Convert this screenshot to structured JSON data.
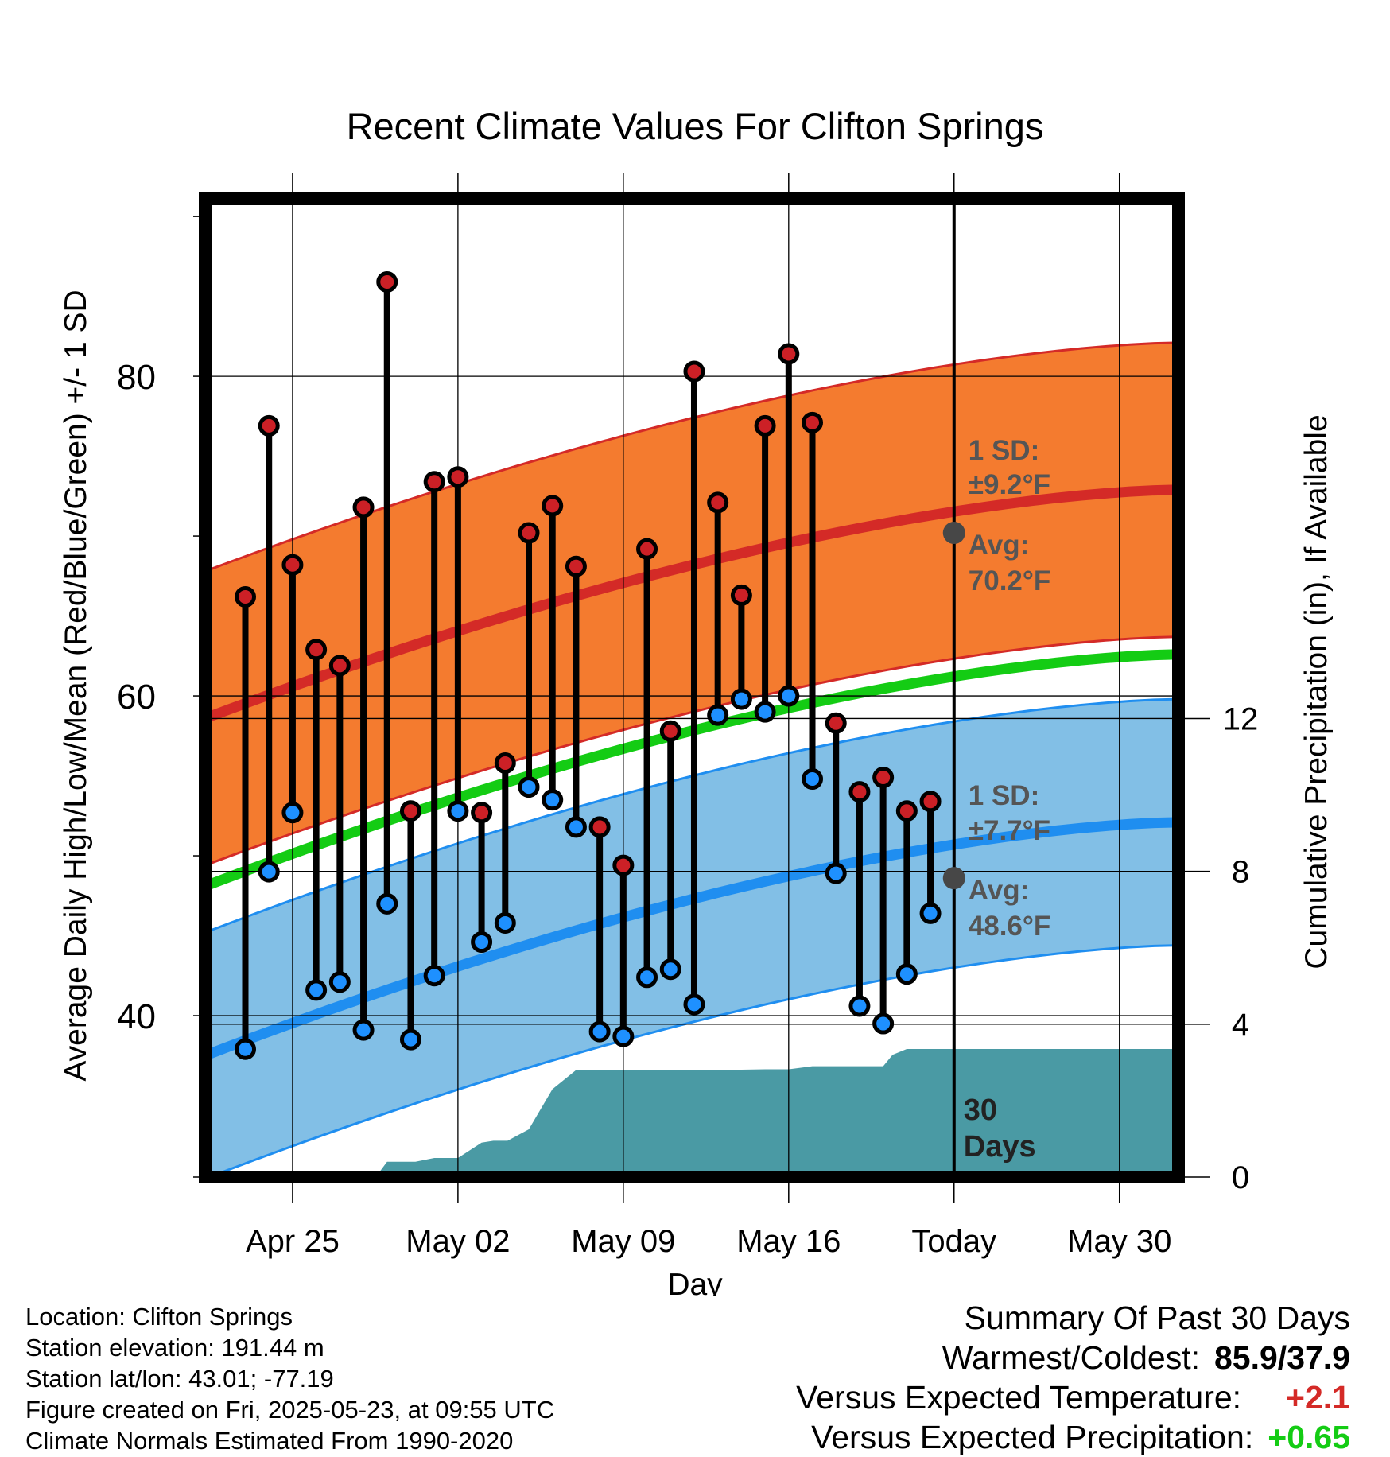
{
  "chart_data": {
    "type": "line",
    "title": "Recent Climate Values For Clifton Springs",
    "xlabel": "Day",
    "ylabel": "Average Daily High/Low/Mean (Red/Blue/Green) +/- 1 SD",
    "ylabel_right": "Cumulative Precipitation (in), If Available",
    "x_tick_labels": [
      "Apr 25",
      "May 02",
      "May 09",
      "May 16",
      "Today",
      "May 30"
    ],
    "x_tick_days": [
      -28,
      -21,
      -14,
      -7,
      0,
      7
    ],
    "xlim": [
      -31.7,
      9.5
    ],
    "y_ticks": [
      40,
      60,
      80
    ],
    "ylim": [
      29.9,
      91.1
    ],
    "y2_ticks": [
      0,
      4,
      8,
      12
    ],
    "y2lim": [
      0,
      25.6
    ],
    "today_marker": {
      "day": 0,
      "label_line1": "30",
      "label_line2": "Days"
    },
    "normals": {
      "days": [
        -31.7,
        9.5
      ],
      "high_mean": [
        58.6,
        72.9
      ],
      "high_sd": 9.2,
      "low_mean": [
        37.5,
        52.1
      ],
      "low_sd": 7.7,
      "mean_line": [
        48.1,
        62.6
      ]
    },
    "annotations": {
      "high_sd_label": "1 SD:",
      "high_sd_value": "±9.2°F",
      "high_avg_label": "Avg:",
      "high_avg_value": "70.2°F",
      "high_avg_point": 70.2,
      "low_sd_label": "1 SD:",
      "low_sd_value": "±7.7°F",
      "low_avg_label": "Avg:",
      "low_avg_value": "48.6°F",
      "low_avg_point": 48.6
    },
    "daily": {
      "days": [
        -30,
        -29,
        -28,
        -27,
        -26,
        -25,
        -24,
        -23,
        -22,
        -21,
        -20,
        -19,
        -18,
        -17,
        -16,
        -15,
        -14,
        -13,
        -12,
        -11,
        -10,
        -9,
        -8,
        -7,
        -6,
        -5,
        -4,
        -3,
        -2,
        -1
      ],
      "highs": [
        66.2,
        76.9,
        68.2,
        62.9,
        61.9,
        71.8,
        85.9,
        52.8,
        73.4,
        73.7,
        52.7,
        55.8,
        70.2,
        71.9,
        68.1,
        51.8,
        49.4,
        69.2,
        57.8,
        80.3,
        72.1,
        66.3,
        76.9,
        81.4,
        77.1,
        58.3,
        54.0,
        54.9,
        52.8,
        53.4
      ],
      "lows": [
        37.9,
        49.0,
        52.7,
        41.6,
        42.1,
        39.1,
        47.0,
        38.5,
        42.5,
        52.8,
        44.6,
        45.8,
        54.3,
        53.5,
        51.8,
        39.0,
        38.7,
        42.4,
        42.9,
        40.7,
        58.8,
        59.8,
        59.0,
        60.0,
        54.8,
        48.9,
        40.6,
        39.5,
        42.6,
        46.4
      ]
    },
    "precip": {
      "days": [
        -31.7,
        -27.3,
        -27.0,
        -24.3,
        -24.0,
        -22.8,
        -22.0,
        -21.0,
        -20.0,
        -19.5,
        -18.9,
        -18.0,
        -17.0,
        -16.0,
        -14.0,
        -12.0,
        -10.0,
        -8.0,
        -7.0,
        -6.0,
        -4.0,
        -3.0,
        -2.6,
        -2.0,
        -1.0,
        9.5
      ],
      "values": [
        0,
        0,
        0.15,
        0.15,
        0.4,
        0.4,
        0.5,
        0.5,
        0.9,
        0.95,
        0.95,
        1.25,
        2.3,
        2.8,
        2.8,
        2.8,
        2.8,
        2.82,
        2.82,
        2.9,
        2.9,
        2.9,
        3.2,
        3.35,
        3.35,
        3.35
      ]
    }
  },
  "footer": {
    "location": "Location: Clifton Springs",
    "elevation": "Station elevation: 191.44 m",
    "latlon": "Station lat/lon: 43.01; -77.19",
    "created": "Figure created on Fri, 2025-05-23, at 09:55 UTC",
    "normals_period": "Climate Normals Estimated From 1990-2020"
  },
  "summary": {
    "heading": "Summary Of Past 30 Days",
    "warm_cold_label": "Warmest/Coldest:",
    "warm_cold_value": "85.9/37.9",
    "temp_label": "Versus Expected Temperature:",
    "temp_value": "+2.1",
    "precip_label": "Versus Expected Precipitation:",
    "precip_value": "+0.65"
  },
  "colors": {
    "high_band": "#f47b2f",
    "high_line": "#d42a27",
    "low_band": "#82bfe6",
    "low_line": "#1f8ef0",
    "mean_line": "#14cc14",
    "precip_fill": "#4a9aa4",
    "high_dot": "#cc2026",
    "low_dot": "#1e90ff",
    "avg_marker": "#474747",
    "annotation": "#555555",
    "temp_value": "#d42a27",
    "precip_value": "#14cc14"
  }
}
